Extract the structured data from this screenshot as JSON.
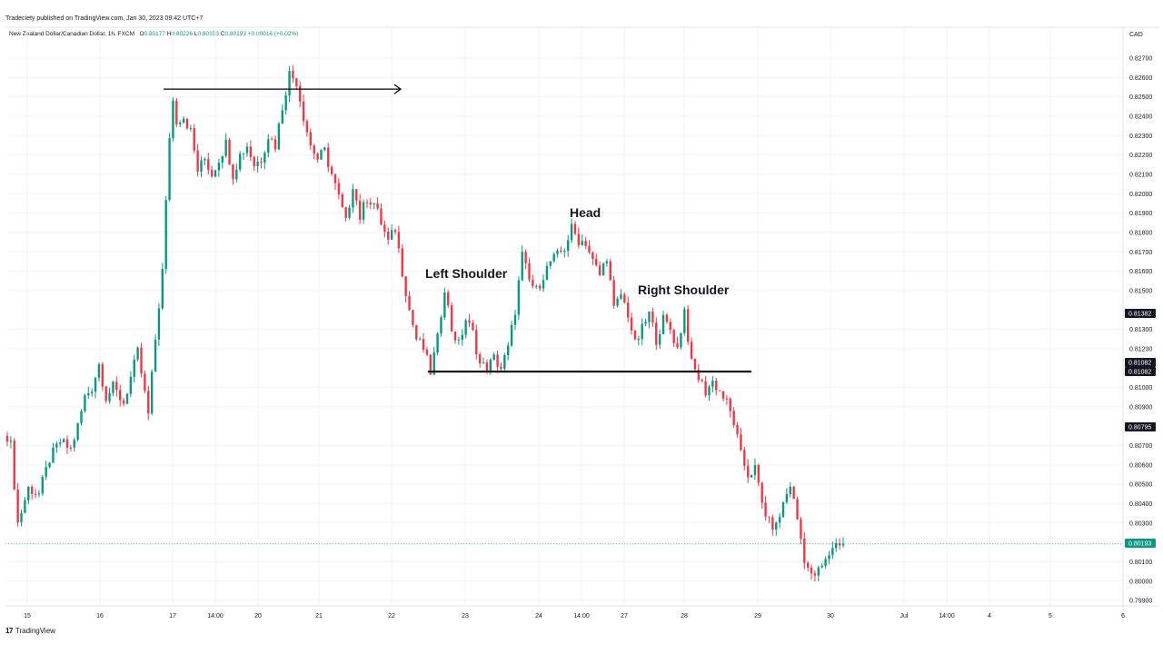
{
  "attribution": "Tradeciety published on TradingView.com, Jan 30, 2023 09:42 UTC+7",
  "header": {
    "symbol": "New Zealand Dollar/Canadian Dollar, 1h, FXCM",
    "o_label": "O",
    "o_value": "0.80177",
    "h_label": "H",
    "h_value": "0.80226",
    "l_label": "L",
    "l_value": "0.80153",
    "c_label": "C",
    "c_value": "0.80193",
    "change": "+0.00016 (+0.02%)"
  },
  "currency": "CAD",
  "footer": {
    "logo_text": "TradingView",
    "logo_mark": "17"
  },
  "colors": {
    "up": "#089981",
    "down": "#f23645",
    "last_price": "#089981",
    "tag_dark": "#131722",
    "grid": "#f0f3fa"
  },
  "annotations": [
    {
      "id": "head",
      "text": "Head"
    },
    {
      "id": "left-shoulder",
      "text": "Left Shoulder"
    },
    {
      "id": "right-shoulder",
      "text": "Right Shoulder"
    }
  ],
  "price_tags": [
    {
      "id": "tag-81382",
      "text": "0.81382",
      "style": "dark"
    },
    {
      "id": "tag-81082-a",
      "text": "0.81082",
      "style": "dark"
    },
    {
      "id": "tag-81082-b",
      "text": "0.81082",
      "style": "dark"
    },
    {
      "id": "tag-80795",
      "text": "0.80795",
      "style": "dark"
    },
    {
      "id": "tag-80193",
      "text": "0.80193",
      "style": "green"
    }
  ],
  "chart_data": {
    "type": "candlestick",
    "y_axis_ticks": [
      "0.82700",
      "0.82600",
      "0.82500",
      "0.82400",
      "0.82300",
      "0.82200",
      "0.82100",
      "0.82000",
      "0.81900",
      "0.81800",
      "0.81700",
      "0.81600",
      "0.81500",
      "0.81300",
      "0.81200",
      "0.81000",
      "0.80900",
      "0.80700",
      "0.80600",
      "0.80500",
      "0.80400",
      "0.80300",
      "0.80100",
      "0.80000",
      "0.79900"
    ],
    "ylim": [
      0.7989,
      0.8279
    ],
    "x_axis_ticks": [
      "15",
      "16",
      "17",
      "14:00",
      "20",
      "21",
      "22",
      "23",
      "24",
      "14:00",
      "27",
      "28",
      "29",
      "30",
      "Jul",
      "14:00",
      "4",
      "5",
      "6"
    ],
    "last_price": 0.80193,
    "lines": [
      {
        "id": "neckline",
        "price": 0.81082
      },
      {
        "id": "top-arrow",
        "price": 0.8254
      }
    ],
    "candle_anchors": [
      [
        0,
        0.8075
      ],
      [
        1,
        0.807
      ],
      [
        3,
        0.803
      ],
      [
        6,
        0.8048
      ],
      [
        9,
        0.8045
      ],
      [
        12,
        0.8063
      ],
      [
        15,
        0.8072
      ],
      [
        18,
        0.8068
      ],
      [
        20,
        0.808
      ],
      [
        22,
        0.8095
      ],
      [
        24,
        0.81
      ],
      [
        26,
        0.8112
      ],
      [
        28,
        0.8095
      ],
      [
        30,
        0.81
      ],
      [
        33,
        0.8092
      ],
      [
        37,
        0.8118
      ],
      [
        40,
        0.8086
      ],
      [
        42,
        0.8125
      ],
      [
        44,
        0.816
      ],
      [
        46,
        0.823
      ],
      [
        47,
        0.8248
      ],
      [
        48,
        0.8238
      ],
      [
        50,
        0.824
      ],
      [
        52,
        0.8232
      ],
      [
        54,
        0.8212
      ],
      [
        56,
        0.8218
      ],
      [
        58,
        0.821
      ],
      [
        60,
        0.8218
      ],
      [
        62,
        0.8226
      ],
      [
        64,
        0.821
      ],
      [
        66,
        0.822
      ],
      [
        68,
        0.8225
      ],
      [
        70,
        0.8215
      ],
      [
        72,
        0.8218
      ],
      [
        74,
        0.823
      ],
      [
        76,
        0.8225
      ],
      [
        78,
        0.8245
      ],
      [
        80,
        0.8262
      ],
      [
        82,
        0.8258
      ],
      [
        84,
        0.824
      ],
      [
        86,
        0.8225
      ],
      [
        88,
        0.8218
      ],
      [
        90,
        0.8222
      ],
      [
        92,
        0.821
      ],
      [
        94,
        0.8198
      ],
      [
        96,
        0.8185
      ],
      [
        98,
        0.8205
      ],
      [
        100,
        0.8188
      ],
      [
        102,
        0.8198
      ],
      [
        104,
        0.8195
      ],
      [
        106,
        0.8185
      ],
      [
        108,
        0.8175
      ],
      [
        110,
        0.8182
      ],
      [
        112,
        0.816
      ],
      [
        114,
        0.814
      ],
      [
        116,
        0.8125
      ],
      [
        118,
        0.812
      ],
      [
        120,
        0.8108
      ],
      [
        122,
        0.8125
      ],
      [
        124,
        0.8152
      ],
      [
        126,
        0.813
      ],
      [
        128,
        0.8122
      ],
      [
        130,
        0.8135
      ],
      [
        132,
        0.8128
      ],
      [
        134,
        0.8112
      ],
      [
        136,
        0.811
      ],
      [
        138,
        0.8115
      ],
      [
        140,
        0.811
      ],
      [
        142,
        0.812
      ],
      [
        144,
        0.814
      ],
      [
        146,
        0.8168
      ],
      [
        148,
        0.8155
      ],
      [
        150,
        0.815
      ],
      [
        152,
        0.8158
      ],
      [
        154,
        0.8165
      ],
      [
        156,
        0.8168
      ],
      [
        158,
        0.8172
      ],
      [
        160,
        0.8182
      ],
      [
        162,
        0.8176
      ],
      [
        164,
        0.8175
      ],
      [
        166,
        0.8165
      ],
      [
        168,
        0.8158
      ],
      [
        170,
        0.8168
      ],
      [
        172,
        0.814
      ],
      [
        174,
        0.8148
      ],
      [
        176,
        0.8138
      ],
      [
        178,
        0.8122
      ],
      [
        180,
        0.813
      ],
      [
        182,
        0.8138
      ],
      [
        184,
        0.8125
      ],
      [
        186,
        0.8135
      ],
      [
        188,
        0.813
      ],
      [
        190,
        0.812
      ],
      [
        192,
        0.814
      ],
      [
        194,
        0.8112
      ],
      [
        196,
        0.8105
      ],
      [
        198,
        0.8098
      ],
      [
        200,
        0.8103
      ],
      [
        202,
        0.8098
      ],
      [
        204,
        0.8092
      ],
      [
        206,
        0.8082
      ],
      [
        208,
        0.8065
      ],
      [
        210,
        0.8055
      ],
      [
        212,
        0.8058
      ],
      [
        214,
        0.804
      ],
      [
        216,
        0.803
      ],
      [
        218,
        0.8028
      ],
      [
        220,
        0.804
      ],
      [
        222,
        0.805
      ],
      [
        224,
        0.8032
      ],
      [
        226,
        0.8012
      ],
      [
        228,
        0.8002
      ],
      [
        230,
        0.8005
      ],
      [
        232,
        0.801
      ],
      [
        234,
        0.8018
      ],
      [
        236,
        0.802
      ],
      [
        237,
        0.80193
      ]
    ]
  }
}
